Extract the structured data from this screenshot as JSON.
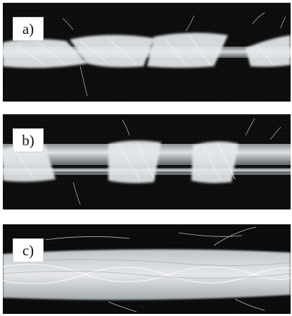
{
  "figure": {
    "panels": [
      {
        "label": "a)",
        "subject": "yarn-wrapped-wire"
      },
      {
        "label": "b)",
        "subject": "yarn-wrapped-wire"
      },
      {
        "label": "c)",
        "subject": "twisted-fiber-yarn"
      }
    ],
    "colors": {
      "background": "#0d0d0d",
      "fiber": "#e8ecef",
      "wire": "#a9adaf",
      "page": "#ffffff"
    }
  }
}
